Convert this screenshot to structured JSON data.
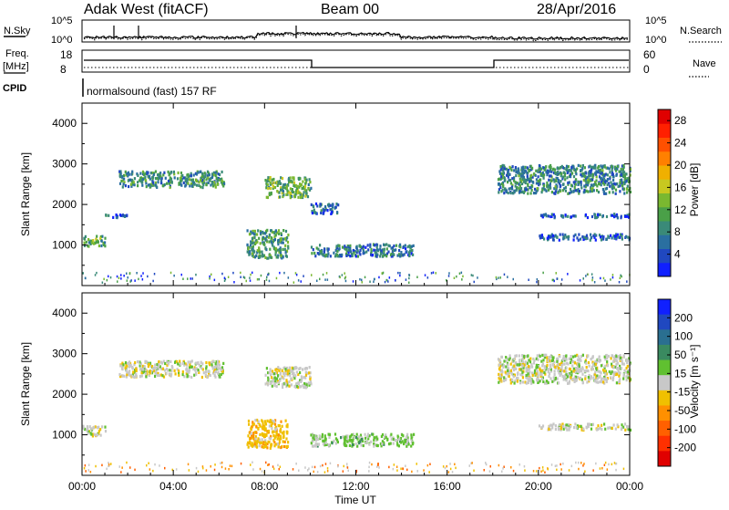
{
  "header": {
    "station": "Adak West (fitACF)",
    "beam": "Beam 00",
    "date": "28/Apr/2016"
  },
  "noise_panel": {
    "left_label": "N.Sky",
    "right_label": "N.Search",
    "left_ticks": [
      "10^5",
      "10^0"
    ],
    "right_ticks": [
      "10^5",
      "10^0"
    ]
  },
  "freq_panel": {
    "left_label_1": "Freq.",
    "left_label_2": "[MHz]",
    "right_label": "Nave",
    "left_ticks": [
      "18",
      "8"
    ],
    "right_ticks": [
      "60",
      "0"
    ]
  },
  "cpid_panel": {
    "label": "CPID",
    "program": "normalsound (fast) 157 RF"
  },
  "x_axis": {
    "label": "Time UT",
    "ticks": [
      "00:00",
      "04:00",
      "08:00",
      "12:00",
      "16:00",
      "20:00",
      "00:00"
    ]
  },
  "chart_data": [
    {
      "type": "heatmap",
      "panel": "power",
      "xlabel": "Time UT",
      "ylabel": "Slant Range [km]",
      "y_ticks": [
        "1000",
        "2000",
        "3000",
        "4000"
      ],
      "xlim": [
        0,
        24
      ],
      "ylim": [
        0,
        4500
      ],
      "colorbar": {
        "label": "Power [dB]",
        "ticks": [
          "4",
          "8",
          "12",
          "16",
          "20",
          "24",
          "28"
        ],
        "colors": [
          "#1020ff",
          "#2048c0",
          "#2a6fa0",
          "#3a8a78",
          "#4aa048",
          "#7ab830",
          "#c8c820",
          "#f0b000",
          "#ff8000",
          "#ff5000",
          "#ff2000",
          "#e00000"
        ]
      },
      "regions": [
        {
          "t0": 1.6,
          "t1": 6.2,
          "r0": 2450,
          "r1": 2850,
          "mean": 9
        },
        {
          "t0": 0.0,
          "t1": 1.0,
          "r0": 1000,
          "r1": 1250,
          "mean": 11
        },
        {
          "t0": 0.9,
          "t1": 2.0,
          "r0": 1700,
          "r1": 1800,
          "mean": 6
        },
        {
          "t0": 7.2,
          "t1": 9.0,
          "r0": 700,
          "r1": 1400,
          "mean": 10
        },
        {
          "t0": 8.0,
          "t1": 10.0,
          "r0": 2200,
          "r1": 2700,
          "mean": 12
        },
        {
          "t0": 10.0,
          "t1": 11.2,
          "r0": 1800,
          "r1": 2050,
          "mean": 6
        },
        {
          "t0": 10.0,
          "t1": 14.5,
          "r0": 750,
          "r1": 1050,
          "mean": 7
        },
        {
          "t0": 18.2,
          "t1": 24.0,
          "r0": 2300,
          "r1": 3000,
          "mean": 8
        },
        {
          "t0": 20.0,
          "t1": 24.0,
          "r0": 1150,
          "r1": 1300,
          "mean": 5
        },
        {
          "t0": 20.0,
          "t1": 24.0,
          "r0": 1700,
          "r1": 1800,
          "mean": 5
        }
      ]
    },
    {
      "type": "heatmap",
      "panel": "velocity",
      "xlabel": "Time UT",
      "ylabel": "Slant Range [km]",
      "y_ticks": [
        "1000",
        "2000",
        "3000",
        "4000"
      ],
      "xlim": [
        0,
        24
      ],
      "ylim": [
        0,
        4500
      ],
      "colorbar": {
        "label": "Velocity [m s⁻¹]",
        "ticks": [
          "200",
          "100",
          "50",
          "15",
          "-15",
          "-50",
          "-100",
          "-200"
        ],
        "colors": [
          "#1020ff",
          "#2048c0",
          "#2a6f90",
          "#3a8a60",
          "#60c030",
          "#c8c8c8",
          "#f0c000",
          "#ff9000",
          "#ff6000",
          "#ff3000",
          "#e00000"
        ]
      },
      "regions": [
        {
          "t0": 1.6,
          "t1": 6.2,
          "r0": 2450,
          "r1": 2850,
          "mean": 0
        },
        {
          "t0": 0.0,
          "t1": 1.0,
          "r0": 1000,
          "r1": 1250,
          "mean": 0
        },
        {
          "t0": 7.2,
          "t1": 9.0,
          "r0": 700,
          "r1": 1400,
          "mean": -40
        },
        {
          "t0": 8.0,
          "t1": 10.0,
          "r0": 2200,
          "r1": 2700,
          "mean": 0
        },
        {
          "t0": 10.0,
          "t1": 14.5,
          "r0": 750,
          "r1": 1050,
          "mean": 30
        },
        {
          "t0": 18.2,
          "t1": 24.0,
          "r0": 2300,
          "r1": 3000,
          "mean": 0
        },
        {
          "t0": 20.0,
          "t1": 24.0,
          "r0": 1150,
          "r1": 1300,
          "mean": 0
        }
      ]
    }
  ]
}
